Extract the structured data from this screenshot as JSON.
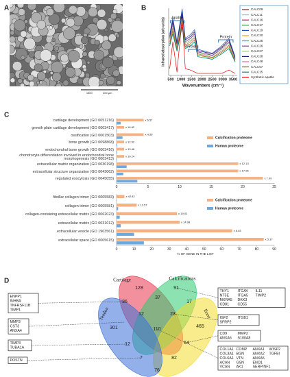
{
  "panels": {
    "a": {
      "label": "A",
      "magnification": "x500",
      "scale_bar": "200 µm"
    },
    "b": {
      "label": "B"
    },
    "c": {
      "label": "C"
    },
    "d": {
      "label": "D"
    }
  },
  "chart_data": [
    {
      "type": "line",
      "y_label": "Infrared absorption (arb units)",
      "x_label": "Wavenumbers (cm⁻¹)",
      "annotations": [
        "Apatite",
        "Protein",
        "Protein"
      ],
      "x": [
        450,
        600,
        800,
        1050,
        1200,
        1450,
        1650,
        1800,
        2500,
        2950,
        3300,
        3600
      ],
      "xlim": [
        400,
        3700
      ],
      "xticks": [
        500,
        1000,
        1500,
        2000,
        2500,
        3000,
        3500
      ],
      "ylim": [
        0,
        1
      ],
      "legend": "right",
      "series": [
        {
          "name": "CALC09",
          "color": "#8b1a1a",
          "values": [
            0.55,
            0.78,
            0.45,
            0.9,
            0.5,
            0.55,
            0.62,
            0.35,
            0.3,
            0.4,
            0.5,
            0.25
          ]
        },
        {
          "name": "CALC11",
          "color": "#7ec8e3",
          "values": [
            0.52,
            0.74,
            0.43,
            0.86,
            0.48,
            0.52,
            0.59,
            0.33,
            0.29,
            0.38,
            0.48,
            0.24
          ]
        },
        {
          "name": "CALC16",
          "color": "#c2185b",
          "values": [
            0.58,
            0.82,
            0.47,
            0.95,
            0.53,
            0.58,
            0.65,
            0.37,
            0.32,
            0.42,
            0.53,
            0.26
          ]
        },
        {
          "name": "CALC17",
          "color": "#2e9e3e",
          "values": [
            0.5,
            0.7,
            0.41,
            0.81,
            0.45,
            0.5,
            0.56,
            0.32,
            0.27,
            0.36,
            0.45,
            0.23
          ]
        },
        {
          "name": "CALC19",
          "color": "#1f4fbf",
          "values": [
            0.61,
            0.86,
            0.5,
            0.99,
            0.55,
            0.61,
            0.68,
            0.39,
            0.33,
            0.44,
            0.55,
            0.28
          ]
        },
        {
          "name": "CALC20",
          "color": "#f39c12",
          "values": [
            0.47,
            0.66,
            0.38,
            0.77,
            0.43,
            0.47,
            0.53,
            0.3,
            0.26,
            0.34,
            0.43,
            0.21
          ]
        },
        {
          "name": "CALC25",
          "color": "#17becf",
          "values": [
            0.44,
            0.62,
            0.36,
            0.72,
            0.4,
            0.44,
            0.5,
            0.28,
            0.24,
            0.32,
            0.4,
            0.2
          ]
        },
        {
          "name": "CALC26",
          "color": "#7b3fa0",
          "values": [
            0.55,
            0.78,
            0.45,
            0.9,
            0.5,
            0.55,
            0.62,
            0.35,
            0.3,
            0.4,
            0.5,
            0.25
          ]
        },
        {
          "name": "CALC27",
          "color": "#8fd16a",
          "values": [
            0.52,
            0.74,
            0.43,
            0.86,
            0.48,
            0.52,
            0.59,
            0.33,
            0.29,
            0.38,
            0.48,
            0.24
          ]
        },
        {
          "name": "CALC28",
          "color": "#1a237e",
          "values": [
            0.58,
            0.82,
            0.47,
            0.95,
            0.53,
            0.58,
            0.65,
            0.37,
            0.32,
            0.42,
            0.53,
            0.26
          ]
        },
        {
          "name": "CALC48",
          "color": "#f06292",
          "values": [
            0.5,
            0.7,
            0.41,
            0.81,
            0.45,
            0.5,
            0.56,
            0.32,
            0.27,
            0.36,
            0.45,
            0.23
          ]
        },
        {
          "name": "CALC57",
          "color": "#808000",
          "values": [
            0.47,
            0.66,
            0.38,
            0.77,
            0.43,
            0.47,
            0.53,
            0.3,
            0.26,
            0.34,
            0.43,
            0.21
          ]
        },
        {
          "name": "CALC15",
          "color": "#00897b",
          "values": [
            0.44,
            0.62,
            0.36,
            0.72,
            0.4,
            0.44,
            0.5,
            0.28,
            0.24,
            0.32,
            0.4,
            0.2
          ]
        },
        {
          "name": "Synthetic apatite",
          "color": "#e60000",
          "values": [
            0.1,
            0.5,
            0.05,
            0.85,
            0.1,
            0.08,
            0.05,
            0.03,
            0.03,
            0.03,
            0.08,
            0.03
          ]
        }
      ]
    },
    {
      "type": "hbar",
      "categories": [
        "cartilage development (GO 0051216)",
        "growth plate cartilage development (GO 0003417)",
        "ossification (GO 0001503)",
        "bone growth (GO 0098868)",
        "endochondral bone growth (GO 0003416)",
        "chondrocyte differentiation involved in endochondral bone morphogenesis (GO 0003413)",
        "extracellular matrix organization (GO 0030198)",
        "extracellular structure organization (GO 0043062)",
        "regulated exocytosis (GO 0045055)"
      ],
      "series": [
        {
          "name": "Calcification proteome",
          "color": "#f4b183",
          "values": [
            4.3,
            1.2,
            4.3,
            1.2,
            1.2,
            1.2,
            19.3,
            19.3,
            23.2
          ]
        },
        {
          "name": "Human proteome",
          "color": "#6fa8dc",
          "values": [
            0.65,
            0.07,
            0.95,
            0.1,
            0.09,
            0.07,
            1.6,
            1.07,
            3.3
          ]
        }
      ],
      "annotations": [
        "x 6.57",
        "x 16.82",
        "x 4.56",
        "x 12.52",
        "x 13.46",
        "x 16.24",
        "x 12.13",
        "x 17.96",
        "x 7.09"
      ],
      "xlim": [
        0,
        25
      ],
      "xticks": [
        0,
        5,
        10,
        15,
        20,
        25
      ],
      "legend": "right"
    },
    {
      "type": "hbar",
      "x_label": "% OF GENE IN THE LIST",
      "categories": [
        "fibrillar collagen trimer (GO 0005583)",
        "collagen trimer (GO 0005581)",
        "collagen-containing extracellular matrix (GO 0062023)",
        "extracellular matrix (GO 0031012)",
        "extracellular vesicle (GO 1903561)",
        "extracellular space (GO 0005615)"
      ],
      "series": [
        {
          "name": "Calcification proteome",
          "color": "#f4b183",
          "values": [
            4.5,
            11.5,
            34.5,
            36,
            66,
            84
          ]
        },
        {
          "name": "Human proteome",
          "color": "#6fa8dc",
          "values": [
            0.1,
            0.9,
            1.8,
            2.4,
            10,
            15.6
          ]
        }
      ],
      "annotations": [
        "x 42.82",
        "x 12.57",
        "x 19.02",
        "x 14.98",
        "x 6.45",
        "x 5.37"
      ],
      "xlim": [
        0,
        90
      ],
      "xticks": [
        0,
        10,
        20,
        30,
        40,
        50,
        60,
        70,
        80,
        90
      ],
      "legend": "right"
    }
  ],
  "venn": {
    "sets": [
      "Cartilage",
      "Calcifications",
      "Bone",
      "Tendon"
    ],
    "colors": [
      "#e8344e",
      "#2ecc71",
      "#f2dc2e",
      "#3a6fd8"
    ],
    "regions": [
      128,
      91,
      36,
      37,
      17,
      301,
      12,
      23,
      465,
      110,
      12,
      64,
      7,
      82,
      76
    ],
    "gene_boxes": [
      [
        [
          "ENPP1"
        ],
        [
          "INHBA"
        ],
        [
          "TNFRSF11B"
        ],
        [
          "TIMP1"
        ]
      ],
      [
        [
          "MMP3"
        ],
        [
          "CST3"
        ],
        [
          "ANXA4"
        ]
      ],
      [
        [
          "TIMP3"
        ],
        [
          "TUBA1A"
        ]
      ],
      [
        [
          "POSTN"
        ]
      ],
      [
        [
          "THY1",
          "ITGAV",
          "IL11"
        ],
        [
          "NT5E",
          "ITGA5",
          "TIMP2"
        ],
        [
          "MXRA5",
          "DKK3"
        ],
        [
          "CD81",
          "CD55"
        ]
      ],
      [
        [
          "IGF2",
          "ITGB1"
        ],
        [
          "SFRP2"
        ]
      ],
      [
        [
          "CD9",
          "MMP2"
        ],
        [
          "ANXA6",
          "S100A8"
        ]
      ],
      [
        [
          "COL1A1",
          "COMP",
          "ANXA1",
          "WISP2"
        ],
        [
          "COL3A1",
          "BGN",
          "ANXA2",
          "TGFBI"
        ],
        [
          "COL6A1",
          "VTN",
          "ANXA5"
        ],
        [
          "ACAN",
          "GSN",
          "ENO1"
        ],
        [
          "VCAN",
          "AK1",
          "SERPINF1"
        ]
      ]
    ]
  }
}
